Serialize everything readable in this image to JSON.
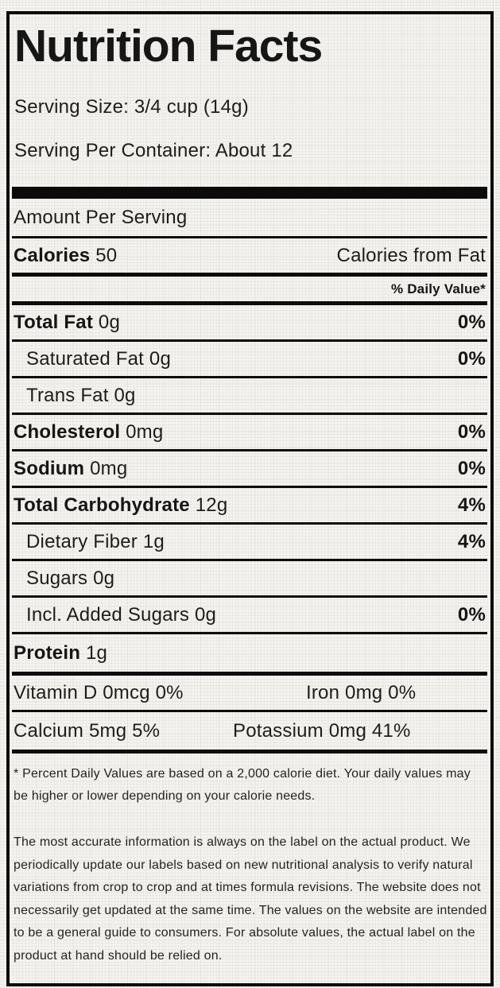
{
  "label": {
    "title": "Nutrition Facts",
    "serving_size": "Serving Size: 3/4 cup (14g)",
    "servings_per_container": "Serving Per Container: About 12",
    "amount_per_serving": "Amount Per Serving",
    "calories": {
      "label": "Calories",
      "value": "50",
      "right_label": "Calories from Fat"
    },
    "daily_value_header": "% Daily Value*",
    "rows": [
      {
        "name": "Total Fat",
        "amount": "0g",
        "dv": "0%"
      },
      {
        "name": "Saturated Fat",
        "amount": "0g",
        "dv": "0%"
      },
      {
        "name": "Trans Fat",
        "amount": "0g",
        "dv": ""
      },
      {
        "name": "Cholesterol",
        "amount": "0mg",
        "dv": "0%"
      },
      {
        "name": "Sodium",
        "amount": "0mg",
        "dv": "0%"
      },
      {
        "name": "Total Carbohydrate",
        "amount": "12g",
        "dv": "4%"
      },
      {
        "name": "Dietary Fiber",
        "amount": "1g",
        "dv": "4%"
      },
      {
        "name": "Sugars",
        "amount": "0g",
        "dv": ""
      },
      {
        "name": "Incl. Added Sugars",
        "amount": "0g",
        "dv": "0%"
      },
      {
        "name": "Protein",
        "amount": "1g",
        "dv": ""
      }
    ],
    "micronutrients": [
      {
        "left": "Vitamin D 0mcg 0%",
        "right": "Iron 0mg 0%"
      },
      {
        "left": "Calcium 5mg 5%",
        "right": "Potassium 0mg 41%"
      }
    ],
    "footnote": "* Percent Daily Values are based on a 2,000 calorie diet. Your daily values may be higher or lower depending on your calorie needs.",
    "disclaimer": "The most accurate information is always on the label on the actual product. We periodically update our labels based on new nutritional analysis to verify natural variations from crop to crop and at times formula revisions. The website does not necessarily get updated at the same time. The values on the website are intended to be a general guide to consumers. For absolute values, the actual label on the product at hand should be relied on."
  }
}
